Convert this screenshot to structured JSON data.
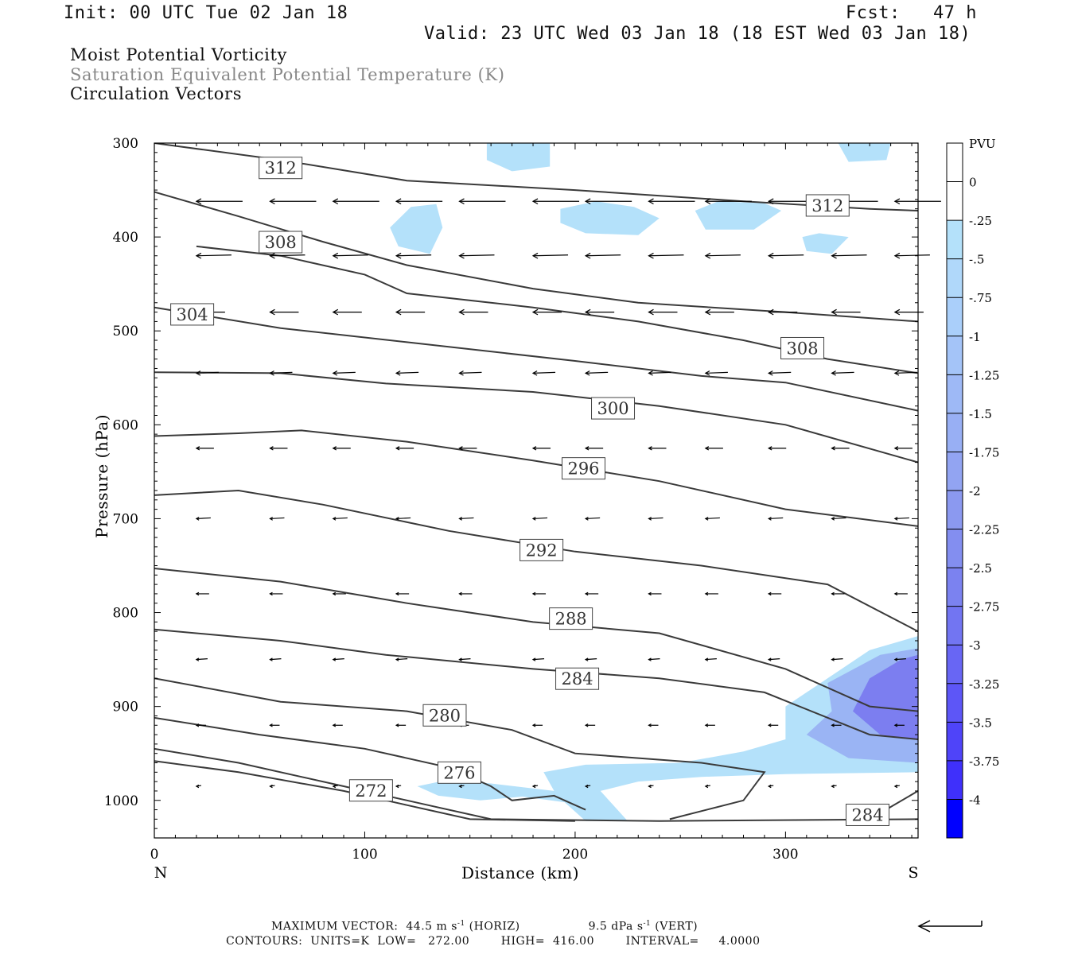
{
  "header": {
    "init": "Init: 00 UTC Tue 02 Jan 18",
    "fcst": "Fcst:   47 h",
    "valid": "Valid: 23 UTC Wed 03 Jan 18 (18 EST Wed 03 Jan 18)"
  },
  "titles": {
    "line1": "Moist Potential Vorticity",
    "line2": "Saturation Equivalent Potential Temperature (K)",
    "line3": "Circulation Vectors"
  },
  "footer": {
    "max_vector": "MAXIMUM VECTOR:  44.5 m s",
    "horiz": " (HORIZ)",
    "vert_val": "9.5 dPa s",
    "vert": " (VERT)",
    "sup": "-1",
    "contours": "CONTOURS:  UNITS=K  LOW=   272.00        HIGH=  416.00        INTERVAL=     4.0000"
  },
  "colors": {
    "contour": "#3a3a3a",
    "shade_light": "#b4e1fa",
    "shade_mid": "#9ab4f4",
    "shade_dark": "#7c7ef0",
    "shade_blue": "#0000ff"
  },
  "chart_data": {
    "type": "cross-section contour",
    "xlabel": "Distance (km)",
    "ylabel": "Pressure (hPa)",
    "xlim": [
      0,
      363
    ],
    "ylim": [
      1040,
      300
    ],
    "x_ticks": [
      "0",
      "100",
      "200",
      "300"
    ],
    "y_ticks": [
      "300",
      "400",
      "500",
      "600",
      "700",
      "800",
      "900",
      "1000"
    ],
    "x_end_left": "N",
    "x_end_right": "S",
    "colorbar": {
      "unit": "PVU",
      "labels": [
        "0",
        "-.25",
        "-.5",
        "-.75",
        "-1",
        "-1.25",
        "-1.5",
        "-1.75",
        "-2",
        "-2.25",
        "-2.5",
        "-2.75",
        "-3",
        "-3.25",
        "-3.5",
        "-3.75",
        "-4"
      ],
      "colors": [
        "#ffffff",
        "#ffffff",
        "#b4e1fa",
        "#b0d8fa",
        "#aacffa",
        "#a4c4f8",
        "#9eb9f6",
        "#98aff4",
        "#92a4f2",
        "#8b99f0",
        "#838ef0",
        "#7b82f0",
        "#7275f2",
        "#6866f4",
        "#5d56f7",
        "#4f44f9",
        "#3f30fb",
        "#0000ff"
      ]
    },
    "contours": [
      {
        "label": "312",
        "points": [
          [
            0,
            300
          ],
          [
            60,
            318
          ],
          [
            120,
            340
          ],
          [
            200,
            350
          ],
          [
            280,
            362
          ],
          [
            340,
            370
          ],
          [
            363,
            372
          ]
        ]
      },
      {
        "label": "312",
        "points": [
          [
            0,
            352
          ],
          [
            40,
            378
          ],
          [
            80,
            405
          ],
          [
            120,
            430
          ],
          [
            180,
            455
          ],
          [
            230,
            470
          ],
          [
            300,
            480
          ],
          [
            363,
            490
          ]
        ]
      },
      {
        "label": "308",
        "points": [
          [
            0,
            475
          ],
          [
            60,
            497
          ],
          [
            120,
            512
          ],
          [
            200,
            532
          ],
          [
            260,
            548
          ],
          [
            300,
            555
          ],
          [
            363,
            585
          ]
        ]
      },
      {
        "label": "308",
        "points": [
          [
            20,
            410
          ],
          [
            60,
            420
          ],
          [
            100,
            440
          ],
          [
            120,
            460
          ],
          [
            180,
            475
          ],
          [
            230,
            490
          ],
          [
            280,
            510
          ],
          [
            320,
            530
          ],
          [
            363,
            545
          ]
        ]
      },
      {
        "label": "304",
        "points": [
          [
            0,
            544
          ],
          [
            60,
            545
          ],
          [
            110,
            556
          ],
          [
            180,
            565
          ],
          [
            240,
            580
          ],
          [
            300,
            600
          ],
          [
            363,
            640
          ]
        ]
      },
      {
        "label": "300",
        "points": [
          [
            0,
            612
          ],
          [
            40,
            609
          ],
          [
            70,
            606
          ],
          [
            120,
            618
          ],
          [
            180,
            638
          ],
          [
            240,
            660
          ],
          [
            300,
            690
          ],
          [
            363,
            708
          ]
        ]
      },
      {
        "label": "296",
        "points": [
          [
            0,
            675
          ],
          [
            40,
            670
          ],
          [
            80,
            685
          ],
          [
            140,
            713
          ],
          [
            200,
            735
          ],
          [
            260,
            750
          ],
          [
            320,
            770
          ],
          [
            363,
            820
          ]
        ]
      },
      {
        "label": "292",
        "points": [
          [
            0,
            753
          ],
          [
            60,
            767
          ],
          [
            120,
            790
          ],
          [
            180,
            810
          ],
          [
            240,
            822
          ],
          [
            300,
            860
          ],
          [
            340,
            900
          ],
          [
            363,
            905
          ]
        ]
      },
      {
        "label": "288",
        "points": [
          [
            0,
            818
          ],
          [
            60,
            830
          ],
          [
            110,
            845
          ],
          [
            180,
            860
          ],
          [
            240,
            870
          ],
          [
            290,
            885
          ],
          [
            340,
            930
          ],
          [
            363,
            935
          ]
        ]
      },
      {
        "label": "284",
        "points": [
          [
            0,
            870
          ],
          [
            60,
            895
          ],
          [
            120,
            905
          ],
          [
            170,
            925
          ],
          [
            200,
            950
          ],
          [
            260,
            960
          ],
          [
            290,
            970
          ],
          [
            280,
            1000
          ],
          [
            245,
            1020
          ]
        ]
      },
      {
        "label": "280",
        "points": [
          [
            0,
            912
          ],
          [
            50,
            930
          ],
          [
            100,
            945
          ],
          [
            140,
            965
          ],
          [
            160,
            985
          ],
          [
            170,
            1000
          ],
          [
            190,
            995
          ],
          [
            205,
            1010
          ]
        ]
      },
      {
        "label": "276",
        "points": [
          [
            0,
            945
          ],
          [
            40,
            960
          ],
          [
            90,
            985
          ],
          [
            130,
            1005
          ],
          [
            160,
            1020
          ],
          [
            240,
            1022
          ],
          [
            363,
            1020
          ]
        ]
      },
      {
        "label": "272",
        "points": [
          [
            0,
            958
          ],
          [
            40,
            970
          ],
          [
            90,
            990
          ],
          [
            120,
            1005
          ],
          [
            150,
            1020
          ],
          [
            200,
            1022
          ]
        ]
      },
      {
        "label": "284",
        "points": [
          [
            340,
            1020
          ],
          [
            363,
            990
          ]
        ]
      }
    ],
    "contour_labels": [
      {
        "text": "312",
        "x": 60,
        "p": 326
      },
      {
        "text": "312",
        "x": 320,
        "p": 366
      },
      {
        "text": "308",
        "x": 60,
        "p": 405
      },
      {
        "text": "304",
        "x": 18,
        "p": 482
      },
      {
        "text": "308",
        "x": 308,
        "p": 518
      },
      {
        "text": "300",
        "x": 218,
        "p": 582
      },
      {
        "text": "296",
        "x": 204,
        "p": 646
      },
      {
        "text": "292",
        "x": 184,
        "p": 733
      },
      {
        "text": "288",
        "x": 198,
        "p": 806
      },
      {
        "text": "284",
        "x": 201,
        "p": 870
      },
      {
        "text": "280",
        "x": 138,
        "p": 909
      },
      {
        "text": "276",
        "x": 145,
        "p": 970
      },
      {
        "text": "272",
        "x": 103,
        "p": 989
      },
      {
        "text": "284",
        "x": 339,
        "p": 1015
      }
    ],
    "shaded_regions": [
      {
        "level": "light",
        "points": [
          [
            158,
            300
          ],
          [
            188,
            300
          ],
          [
            188,
            325
          ],
          [
            170,
            330
          ],
          [
            158,
            318
          ]
        ]
      },
      {
        "level": "light",
        "points": [
          [
            325,
            300
          ],
          [
            350,
            300
          ],
          [
            348,
            318
          ],
          [
            330,
            320
          ]
        ]
      },
      {
        "level": "light",
        "points": [
          [
            112,
            390
          ],
          [
            122,
            368
          ],
          [
            134,
            365
          ],
          [
            137,
            390
          ],
          [
            131,
            418
          ],
          [
            116,
            410
          ]
        ]
      },
      {
        "level": "light",
        "points": [
          [
            193,
            370
          ],
          [
            210,
            362
          ],
          [
            228,
            368
          ],
          [
            240,
            380
          ],
          [
            230,
            398
          ],
          [
            205,
            396
          ],
          [
            193,
            385
          ]
        ]
      },
      {
        "level": "light",
        "points": [
          [
            257,
            372
          ],
          [
            268,
            362
          ],
          [
            290,
            364
          ],
          [
            298,
            372
          ],
          [
            285,
            392
          ],
          [
            262,
            392
          ]
        ]
      },
      {
        "level": "light",
        "points": [
          [
            308,
            400
          ],
          [
            316,
            396
          ],
          [
            330,
            400
          ],
          [
            322,
            418
          ],
          [
            310,
            415
          ]
        ]
      },
      {
        "level": "light",
        "points": [
          [
            125,
            985
          ],
          [
            140,
            978
          ],
          [
            160,
            982
          ],
          [
            190,
            990
          ],
          [
            185,
            970
          ],
          [
            205,
            962
          ],
          [
            250,
            960
          ],
          [
            280,
            948
          ],
          [
            300,
            935
          ],
          [
            300,
            900
          ],
          [
            340,
            840
          ],
          [
            363,
            825
          ],
          [
            363,
            970
          ],
          [
            300,
            972
          ],
          [
            260,
            975
          ],
          [
            230,
            980
          ],
          [
            212,
            990
          ],
          [
            225,
            1022
          ],
          [
            205,
            1022
          ],
          [
            195,
            1002
          ],
          [
            175,
            996
          ],
          [
            155,
            1000
          ],
          [
            135,
            995
          ]
        ]
      },
      {
        "level": "mid",
        "points": [
          [
            320,
            875
          ],
          [
            345,
            845
          ],
          [
            363,
            838
          ],
          [
            363,
            960
          ],
          [
            330,
            955
          ],
          [
            310,
            930
          ],
          [
            322,
            905
          ]
        ]
      },
      {
        "level": "dark",
        "points": [
          [
            340,
            870
          ],
          [
            355,
            850
          ],
          [
            363,
            845
          ],
          [
            363,
            935
          ],
          [
            345,
            930
          ],
          [
            332,
            905
          ]
        ]
      }
    ],
    "vector_rows": [
      {
        "p": 362,
        "xs": [
          20,
          55,
          85,
          115,
          145,
          180,
          205,
          235,
          262,
          292,
          322,
          352
        ],
        "len": 58
      },
      {
        "p": 420,
        "xs": [
          20,
          55,
          85,
          115,
          145,
          180,
          205,
          235,
          262,
          292,
          322,
          352
        ],
        "len": 44
      },
      {
        "p": 480,
        "xs": [
          20,
          55,
          85,
          115,
          145,
          180,
          205,
          235,
          262,
          292,
          322,
          352
        ],
        "len": 36
      },
      {
        "p": 545,
        "xs": [
          20,
          55,
          85,
          115,
          145,
          180,
          205,
          235,
          262,
          292,
          322,
          352
        ],
        "len": 28
      },
      {
        "p": 625,
        "xs": [
          20,
          55,
          85,
          115,
          145,
          180,
          205,
          235,
          262,
          292,
          322,
          352
        ],
        "len": 22
      },
      {
        "p": 700,
        "xs": [
          20,
          55,
          85,
          115,
          145,
          180,
          205,
          235,
          262,
          292,
          322,
          352
        ],
        "len": 18
      },
      {
        "p": 780,
        "xs": [
          20,
          55,
          85,
          115,
          145,
          180,
          205,
          235,
          262,
          292,
          322,
          352
        ],
        "len": 16
      },
      {
        "p": 850,
        "xs": [
          20,
          55,
          85,
          115,
          145,
          180,
          205,
          235,
          262,
          292,
          322,
          352
        ],
        "len": 14
      },
      {
        "p": 920,
        "xs": [
          20,
          55,
          85,
          115,
          145,
          180,
          205,
          235,
          262,
          292,
          322,
          352
        ],
        "len": 12
      },
      {
        "p": 985,
        "xs": [
          20,
          55,
          85,
          115,
          145,
          180,
          205,
          235,
          262,
          292,
          322,
          352
        ],
        "len": 6
      }
    ]
  }
}
